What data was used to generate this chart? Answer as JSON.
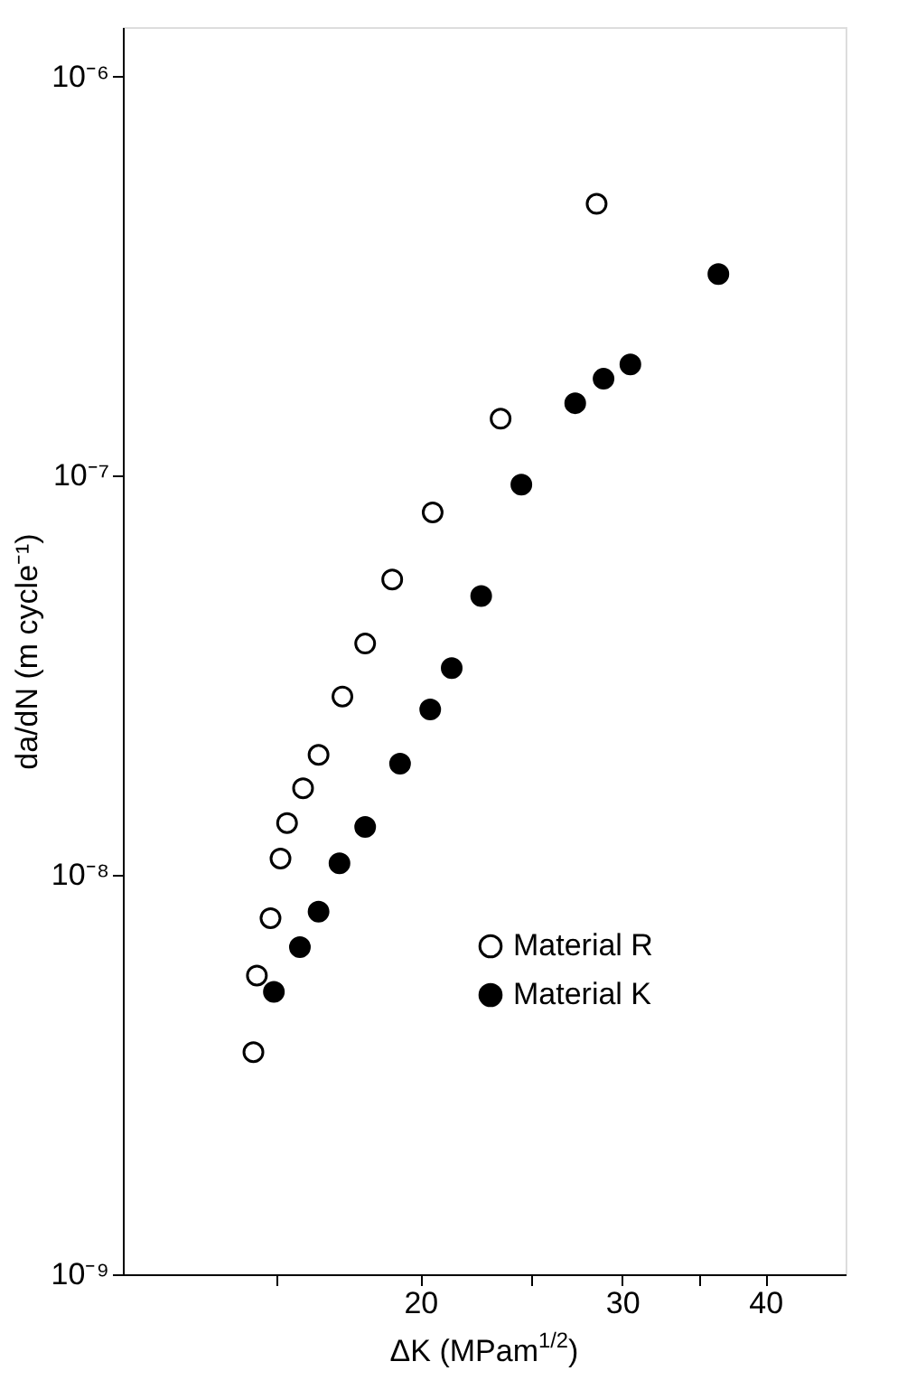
{
  "chart_data": {
    "type": "scatter",
    "xlabel": "ΔK (MPam$^{1/2}$)",
    "ylabel": "da/dN (m cycle⁻¹)",
    "log": "xy",
    "marker": "circle",
    "grid": false,
    "legend": "bottom right",
    "xlim": [
      11,
      47
    ],
    "xticks": [
      {
        "value": 15,
        "label": null
      },
      20,
      {
        "value": 25,
        "label": null
      },
      30,
      {
        "value": 35,
        "label": null
      },
      40
    ],
    "ylim": [
      1e-09,
      1.33e-06
    ],
    "yticks": [
      {
        "value": 1e-09,
        "label": "10⁻⁹"
      },
      {
        "value": 1e-08,
        "label": "10⁻⁸"
      },
      {
        "value": 1e-07,
        "label": "10⁻⁷"
      },
      {
        "value": 1e-06,
        "label": "10⁻⁶"
      }
    ],
    "series": [
      {
        "name": "Material R",
        "color": "#ffffff",
        "x": [
          28.5,
          23.5,
          20.5,
          18.9,
          17.9,
          17.1,
          16.3,
          15.8,
          15.3,
          15.1,
          14.8,
          14.4,
          14.3
        ],
        "values": [
          4.8e-07,
          1.39e-07,
          8.1e-08,
          5.5e-08,
          3.8e-08,
          2.8e-08,
          2e-08,
          1.65e-08,
          1.35e-08,
          1.1e-08,
          7.8e-09,
          5.6e-09,
          3.6e-09
        ]
      },
      {
        "name": "Material K",
        "color": "#000000",
        "x": [
          36.4,
          30.5,
          28.9,
          27.3,
          24.5,
          22.6,
          21.3,
          20.4,
          19.2,
          17.9,
          17.0,
          16.3,
          15.7,
          14.9
        ],
        "values": [
          3.2e-07,
          1.9e-07,
          1.75e-07,
          1.52e-07,
          9.5e-08,
          5e-08,
          3.3e-08,
          2.6e-08,
          1.9e-08,
          1.32e-08,
          1.07e-08,
          8.1e-09,
          6.6e-09,
          5.1e-09
        ]
      }
    ]
  }
}
